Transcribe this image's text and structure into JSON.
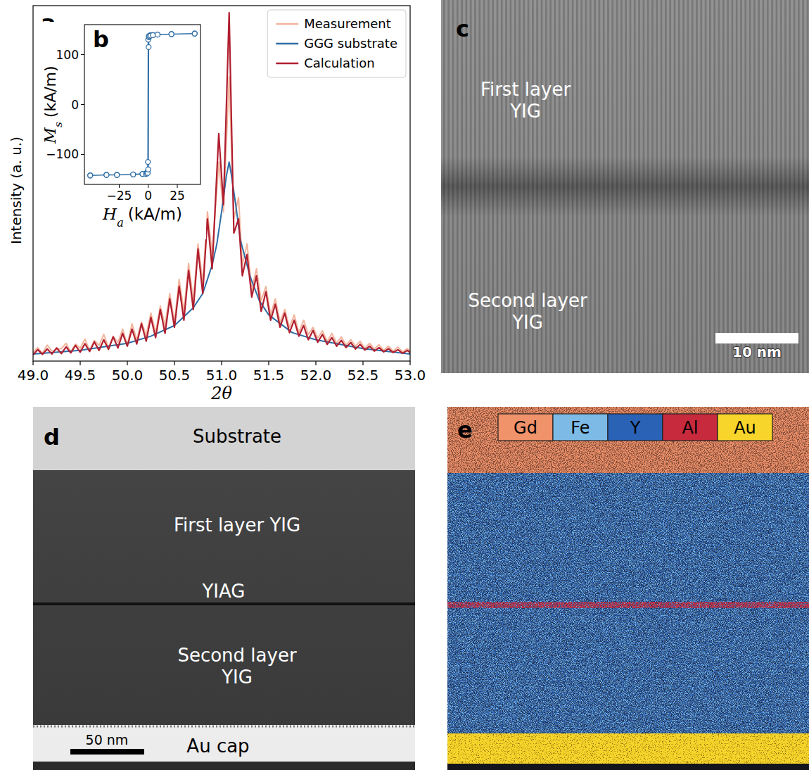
{
  "chart_data": [
    {
      "panel": "a",
      "type": "line",
      "xlabel": "2θ",
      "ylabel": "Intensity (a. u.)",
      "xlim": [
        49,
        53
      ],
      "ylim": [
        0,
        100
      ],
      "xticks": [
        {
          "value": 49,
          "label": "49.0"
        },
        {
          "value": 49.5,
          "label": "49.5"
        },
        {
          "value": 50,
          "label": "50.0"
        },
        {
          "value": 50.5,
          "label": "50.5"
        },
        {
          "value": 51,
          "label": "51.0"
        },
        {
          "value": 51.5,
          "label": "51.5"
        },
        {
          "value": 52,
          "label": "52.0"
        },
        {
          "value": 52.5,
          "label": "52.5"
        },
        {
          "value": 53,
          "label": "53.0"
        }
      ],
      "tick_labels": "x",
      "legend": "upper right",
      "series": [
        {
          "name": "Measurement",
          "color": "#f2b49c",
          "x": [
            49.0,
            49.05,
            49.1,
            49.15,
            49.2,
            49.25,
            49.3,
            49.35,
            49.4,
            49.45,
            49.5,
            49.55,
            49.6,
            49.65,
            49.7,
            49.75,
            49.8,
            49.85,
            49.9,
            49.95,
            50.0,
            50.05,
            50.1,
            50.15,
            50.2,
            50.25,
            50.3,
            50.35,
            50.4,
            50.45,
            50.5,
            50.55,
            50.6,
            50.65,
            50.7,
            50.75,
            50.8,
            50.85,
            50.9,
            50.97,
            51.02,
            51.08,
            51.13,
            51.18,
            51.22,
            51.27,
            51.32,
            51.37,
            51.42,
            51.47,
            51.52,
            51.57,
            51.62,
            51.67,
            51.72,
            51.77,
            51.82,
            51.87,
            51.92,
            51.97,
            52.02,
            52.07,
            52.12,
            52.17,
            52.22,
            52.27,
            52.32,
            52.37,
            52.42,
            52.47,
            52.52,
            52.57,
            52.62,
            52.67,
            52.72,
            52.77,
            52.82,
            52.87,
            52.92,
            52.97,
            53.0
          ],
          "values": [
            2.5,
            3.8,
            2.2,
            4.5,
            2.8,
            3.2,
            3.5,
            5.0,
            2.6,
            4.8,
            3.6,
            6.2,
            3.0,
            5.8,
            4.4,
            7.5,
            3.8,
            7.0,
            5.2,
            9.0,
            4.6,
            10.5,
            6.0,
            11.0,
            7.2,
            13.5,
            8.0,
            15.5,
            10.0,
            19.0,
            11.0,
            23.0,
            14.0,
            27.5,
            17.0,
            33.0,
            22.0,
            42.0,
            30.0,
            56.0,
            42.0,
            80.0,
            40.0,
            46.0,
            27.0,
            33.0,
            20.0,
            26.0,
            17.0,
            21.0,
            13.0,
            17.5,
            11.0,
            14.5,
            9.5,
            13.0,
            8.0,
            11.5,
            7.5,
            9.5,
            6.5,
            8.5,
            5.5,
            7.8,
            5.0,
            6.8,
            4.5,
            6.0,
            4.2,
            5.6,
            3.6,
            5.0,
            3.4,
            4.6,
            3.0,
            4.2,
            2.8,
            3.9,
            2.6,
            3.5,
            2.8
          ]
        },
        {
          "name": "GGG substrate",
          "color": "#2f6ea5",
          "x": [
            49.0,
            49.5,
            50.0,
            50.25,
            50.5,
            50.7,
            50.8,
            50.9,
            50.95,
            51.0,
            51.05,
            51.08,
            51.1,
            51.15,
            51.2,
            51.3,
            51.4,
            51.5,
            51.75,
            52.0,
            52.5,
            53.0
          ],
          "values": [
            2,
            3,
            5,
            7,
            10,
            15,
            19,
            27,
            33,
            42,
            52,
            56,
            53,
            44,
            34,
            24,
            17,
            13,
            8,
            6,
            3.5,
            2
          ]
        },
        {
          "name": "Calculation",
          "color": "#b01f30",
          "x": [
            49.0,
            49.05,
            49.1,
            49.15,
            49.2,
            49.25,
            49.3,
            49.35,
            49.4,
            49.45,
            49.5,
            49.55,
            49.6,
            49.65,
            49.7,
            49.75,
            49.8,
            49.85,
            49.9,
            49.95,
            50.0,
            50.05,
            50.1,
            50.15,
            50.2,
            50.25,
            50.3,
            50.35,
            50.4,
            50.45,
            50.5,
            50.55,
            50.6,
            50.65,
            50.7,
            50.75,
            50.8,
            50.85,
            50.9,
            50.97,
            51.02,
            51.08,
            51.13,
            51.18,
            51.22,
            51.27,
            51.32,
            51.37,
            51.42,
            51.47,
            51.52,
            51.57,
            51.62,
            51.67,
            51.72,
            51.77,
            51.82,
            51.87,
            51.92,
            51.97,
            52.02,
            52.07,
            52.12,
            52.17,
            52.22,
            52.27,
            52.32,
            52.37,
            52.42,
            52.47,
            52.52,
            52.57,
            52.62,
            52.67,
            52.72,
            52.77,
            52.82,
            52.87,
            52.92,
            52.97,
            53.0
          ],
          "values": [
            1.8,
            3.2,
            1.9,
            3.4,
            2.0,
            3.7,
            2.1,
            4.0,
            2.3,
            4.4,
            2.5,
            4.9,
            2.7,
            5.4,
            3.0,
            6.0,
            3.3,
            6.8,
            3.7,
            7.8,
            4.2,
            9.0,
            4.8,
            10.5,
            5.6,
            12.3,
            6.6,
            14.5,
            7.8,
            17.5,
            9.5,
            21,
            11.5,
            25.5,
            14.5,
            31.5,
            19,
            40,
            26,
            64,
            44,
            98,
            36,
            40,
            24,
            30,
            18,
            24,
            14,
            19.5,
            11.5,
            16,
            9.5,
            13.5,
            8,
            11.5,
            7,
            10,
            6,
            8.6,
            5.3,
            7.5,
            4.7,
            6.6,
            4.2,
            5.8,
            3.8,
            5.2,
            3.4,
            4.7,
            3.1,
            4.2,
            2.8,
            3.8,
            2.6,
            3.5,
            2.4,
            3.2,
            2.2,
            3.0,
            2.4
          ]
        }
      ]
    },
    {
      "panel": "b",
      "type": "line",
      "marker": "circle",
      "xlabel": {
        "symbol": "H",
        "subscript": "a",
        "unit": "(kA/m)"
      },
      "ylabel": {
        "symbol": "M",
        "subscript": "s",
        "unit": "(kA/m)"
      },
      "xlim": [
        -55,
        45
      ],
      "ylim": [
        -160,
        160
      ],
      "xticks": [
        {
          "value": -25,
          "label": "−25"
        },
        0,
        25
      ],
      "yticks": [
        {
          "value": -100,
          "label": "−100"
        },
        0,
        100
      ],
      "series": [
        {
          "color": "#2f6ea5",
          "x": [
            40,
            20,
            8,
            4,
            2,
            1,
            0.5,
            0,
            -0.3,
            -0.6,
            -1,
            -2,
            -5,
            -13,
            -27,
            -36,
            -50,
            -50,
            -36,
            -27,
            -13,
            -5,
            -2,
            -1,
            -0.5,
            0,
            0.3,
            0.6,
            1,
            2,
            4,
            8,
            20,
            40
          ],
          "values": [
            142,
            141,
            140,
            139,
            139,
            138,
            137,
            130,
            -115,
            -135,
            -137,
            -138,
            -139,
            -140,
            -141,
            -141,
            -142,
            -142,
            -141,
            -141,
            -140,
            -139,
            -139,
            -138,
            -137,
            -130,
            115,
            135,
            137,
            138,
            139,
            140,
            141,
            142
          ]
        }
      ]
    }
  ],
  "images": [
    {
      "panel": "c",
      "labels": [
        "First layer YIG",
        "Second layer YIG"
      ],
      "scale_bar": "10 nm"
    },
    {
      "panel": "d",
      "labels": [
        "Substrate",
        "First layer YIG",
        "YIAG",
        "Second layer YIG",
        "Au cap"
      ],
      "scale_bar": "50 nm"
    },
    {
      "panel": "e",
      "legend": [
        {
          "name": "Gd",
          "color": "#f0926a"
        },
        {
          "name": "Fe",
          "color": "#7dbbe6"
        },
        {
          "name": "Y",
          "color": "#2a62b6"
        },
        {
          "name": "Al",
          "color": "#c62a3c"
        },
        {
          "name": "Au",
          "color": "#f7d52a"
        }
      ]
    }
  ]
}
